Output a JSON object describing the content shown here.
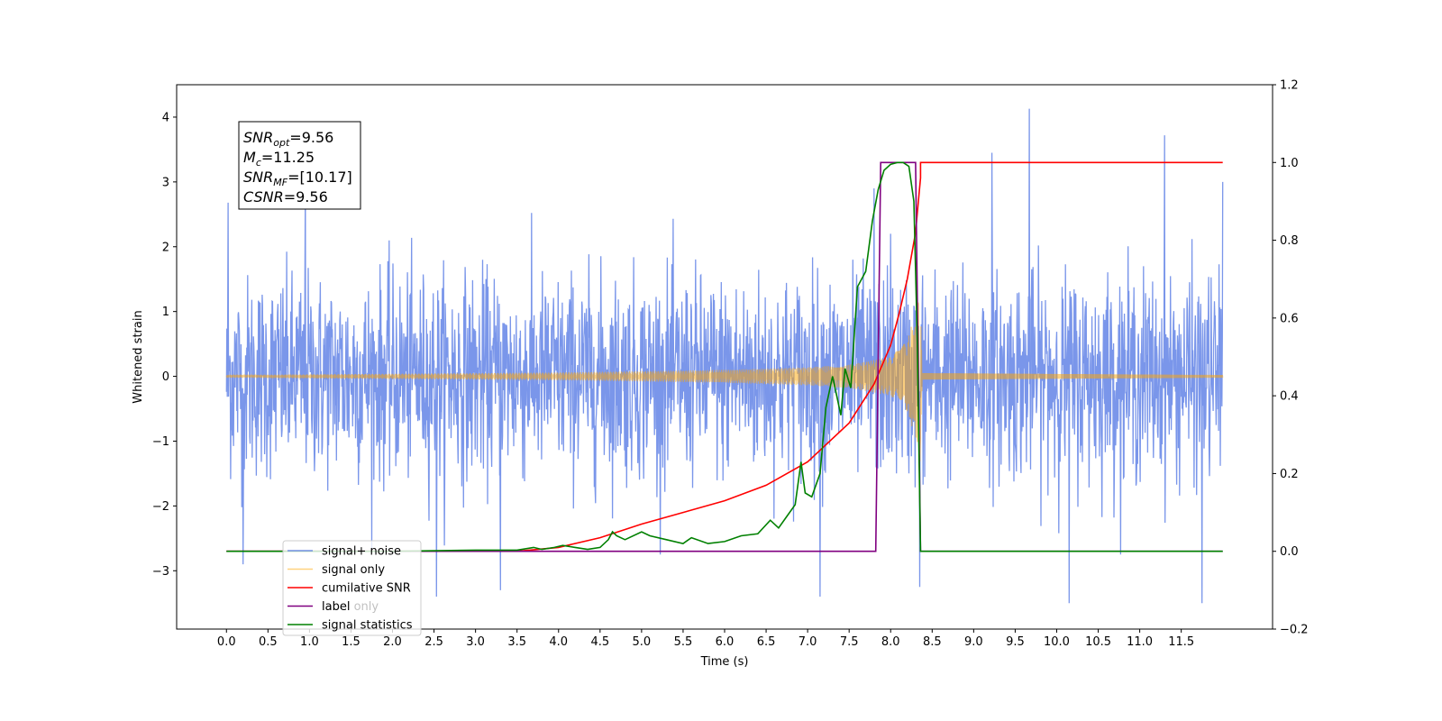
{
  "chart_data": {
    "type": "line",
    "xlabel": "Time (s)",
    "ylabel": "Whitened strain",
    "xlim": [
      -0.6,
      12.6
    ],
    "ylim": [
      -3.9,
      4.5
    ],
    "y2lim": [
      -0.2,
      1.2
    ],
    "x_ticks": [
      "0.0",
      "0.5",
      "1.0",
      "1.5",
      "2.0",
      "2.5",
      "3.0",
      "3.5",
      "4.0",
      "4.5",
      "5.0",
      "5.5",
      "6.0",
      "6.5",
      "7.0",
      "7.5",
      "8.0",
      "8.5",
      "9.0",
      "9.5",
      "10.0",
      "10.5",
      "11.0",
      "11.5"
    ],
    "x_tick_values": [
      0,
      0.5,
      1,
      1.5,
      2,
      2.5,
      3,
      3.5,
      4,
      4.5,
      5,
      5.5,
      6,
      6.5,
      7,
      7.5,
      8,
      8.5,
      9,
      9.5,
      10,
      10.5,
      11,
      11.5
    ],
    "y_ticks": [
      "−3",
      "−2",
      "−1",
      "0",
      "1",
      "2",
      "3",
      "4"
    ],
    "y_tick_values": [
      -3,
      -2,
      -1,
      0,
      1,
      2,
      3,
      4
    ],
    "y2_ticks": [
      "−0.2",
      "0.0",
      "0.2",
      "0.4",
      "0.6",
      "0.8",
      "1.0",
      "1.2"
    ],
    "y2_tick_values": [
      -0.2,
      0,
      0.2,
      0.4,
      0.6,
      0.8,
      1.0,
      1.2
    ],
    "grid": false,
    "legend_placement": "lower-left",
    "annotation": {
      "lines": [
        {
          "sym": "SNR",
          "sub": "opt",
          "val": "=9.56"
        },
        {
          "sym": "M",
          "sub": "c",
          "val": "=11.25"
        },
        {
          "sym": "SNR",
          "sub": "MF",
          "val": "=[10.17]"
        },
        {
          "sym": "CSNR",
          "sub": "",
          "val": "=9.56"
        }
      ]
    },
    "series": [
      {
        "name": "signal+ noise",
        "color": "#4169e1",
        "axis": "left",
        "kind": "noise",
        "x_range": [
          0,
          12
        ],
        "amplitude_typical": 1.4,
        "peaks": [
          [
            0.02,
            2.68
          ],
          [
            0.95,
            2.9
          ],
          [
            3.3,
            3.72
          ],
          [
            7.8,
            2.9
          ],
          [
            8.0,
            2.2
          ],
          [
            9.22,
            3.45
          ],
          [
            9.67,
            4.13
          ],
          [
            11.3,
            3.72
          ],
          [
            12.0,
            3.0
          ],
          [
            0.2,
            -2.9
          ],
          [
            2.53,
            -3.4
          ],
          [
            3.3,
            -3.3
          ],
          [
            7.15,
            -3.4
          ],
          [
            8.35,
            -3.25
          ],
          [
            10.15,
            -3.5
          ],
          [
            11.75,
            -3.5
          ]
        ]
      },
      {
        "name": "signal only",
        "color": "#ffa500",
        "axis": "left",
        "kind": "chirp",
        "x_range": [
          0,
          12
        ],
        "merger_time": 8.35,
        "envelope": [
          [
            0,
            0.02
          ],
          [
            2,
            0.04
          ],
          [
            4,
            0.06
          ],
          [
            5,
            0.08
          ],
          [
            6,
            0.1
          ],
          [
            7,
            0.14
          ],
          [
            7.5,
            0.18
          ],
          [
            8.0,
            0.3
          ],
          [
            8.2,
            0.55
          ],
          [
            8.3,
            1.0
          ],
          [
            8.35,
            1.4
          ],
          [
            8.38,
            0.05
          ],
          [
            12,
            0.02
          ]
        ]
      },
      {
        "name": "cumilative SNR",
        "color": "#ff0000",
        "axis": "right",
        "x": [
          0,
          3.5,
          4.0,
          4.5,
          5.0,
          5.5,
          6.0,
          6.5,
          7.0,
          7.5,
          7.8,
          8.0,
          8.1,
          8.2,
          8.3,
          8.33,
          8.36,
          8.36,
          12.0
        ],
        "y": [
          0,
          0,
          0.01,
          0.035,
          0.07,
          0.1,
          0.13,
          0.17,
          0.23,
          0.33,
          0.43,
          0.53,
          0.61,
          0.7,
          0.82,
          0.89,
          0.96,
          1.0,
          1.0
        ]
      },
      {
        "name": "label",
        "color": "#800080",
        "axis": "right",
        "x": [
          0,
          7.82,
          7.88,
          8.3,
          8.36,
          12.0
        ],
        "y": [
          0,
          0,
          1.0,
          1.0,
          0,
          0
        ]
      },
      {
        "name": "signal statistics",
        "color": "#008000",
        "axis": "right",
        "x": [
          0,
          1,
          2,
          3.0,
          3.5,
          3.7,
          3.8,
          3.95,
          4.05,
          4.2,
          4.35,
          4.5,
          4.6,
          4.65,
          4.7,
          4.8,
          5.0,
          5.1,
          5.3,
          5.5,
          5.6,
          5.8,
          6.0,
          6.2,
          6.4,
          6.55,
          6.65,
          6.75,
          6.85,
          6.92,
          6.97,
          7.05,
          7.15,
          7.22,
          7.3,
          7.4,
          7.45,
          7.52,
          7.6,
          7.7,
          7.78,
          7.85,
          7.92,
          8.0,
          8.08,
          8.15,
          8.22,
          8.28,
          8.32,
          8.36,
          8.45,
          12.0
        ],
        "y": [
          0,
          0,
          0,
          0.003,
          0.003,
          0.01,
          0.005,
          0.01,
          0.015,
          0.01,
          0.005,
          0.01,
          0.03,
          0.05,
          0.04,
          0.03,
          0.05,
          0.04,
          0.03,
          0.02,
          0.035,
          0.02,
          0.025,
          0.04,
          0.045,
          0.08,
          0.06,
          0.09,
          0.12,
          0.23,
          0.15,
          0.14,
          0.2,
          0.37,
          0.45,
          0.35,
          0.47,
          0.42,
          0.68,
          0.72,
          0.85,
          0.93,
          0.98,
          0.995,
          1.0,
          1.0,
          0.99,
          0.9,
          0.55,
          0.0,
          0.0,
          0.0
        ]
      },
      {
        "name": "label only",
        "color": "#ffa500",
        "axis": "right",
        "legend_only": true
      }
    ]
  }
}
